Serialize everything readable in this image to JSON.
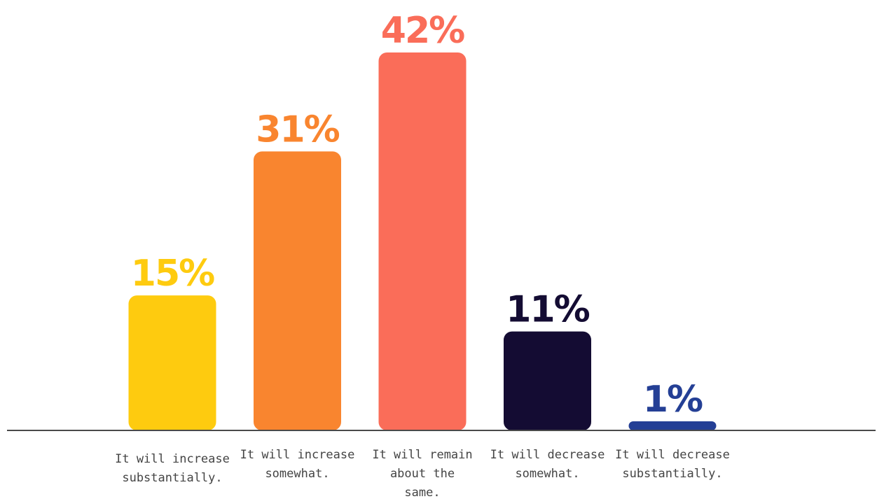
{
  "chart_data": {
    "type": "bar",
    "title": "",
    "xlabel": "",
    "ylabel": "",
    "ylim": [
      0,
      42
    ],
    "grid": false,
    "legend": "none",
    "baseline_color": "#4a4a4a",
    "categories": [
      [
        "It will increase",
        "substantially."
      ],
      [
        "It will increase",
        "somewhat."
      ],
      [
        "It will remain",
        "about the",
        "same."
      ],
      [
        "It will decrease",
        "somewhat."
      ],
      [
        "It will decrease",
        "substantially."
      ]
    ],
    "values": [
      15,
      31,
      42,
      11,
      1
    ],
    "value_labels": [
      "15%",
      "31%",
      "42%",
      "11%",
      "1%"
    ],
    "colors": [
      "#fecb0f",
      "#f9852f",
      "#fa6d59",
      "#140c33",
      "#243f95"
    ]
  }
}
